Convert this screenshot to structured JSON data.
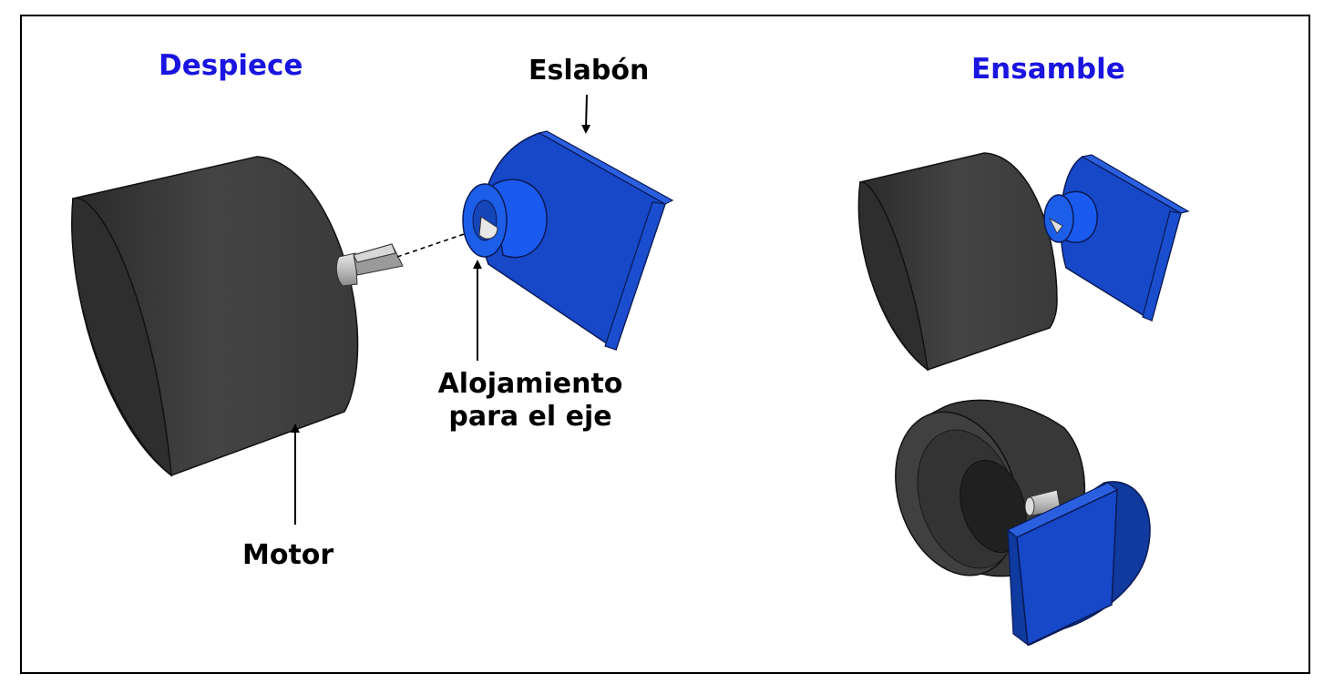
{
  "titles": {
    "exploded": "Despiece",
    "assembly": "Ensamble"
  },
  "labels": {
    "link": "Eslabón",
    "shaft_housing_line1": "Alojamiento",
    "shaft_housing_line2": "para el eje",
    "motor": "Motor"
  },
  "colors": {
    "motor_body": "#3a3a3a",
    "link_blue": "#1440c8",
    "title_blue": "#1a14e0",
    "shaft": "#c8c8c8"
  }
}
